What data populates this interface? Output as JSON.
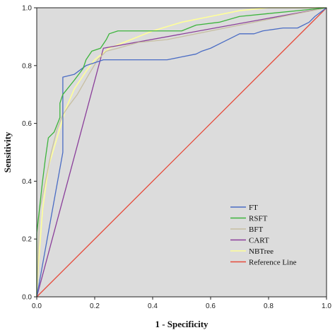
{
  "chart_data": {
    "type": "line",
    "title": "",
    "xlabel": "1 - Specificity",
    "ylabel": "Sensitivity",
    "xlim": [
      0,
      1
    ],
    "ylim": [
      0,
      1
    ],
    "xticks": [
      "0.0",
      "0.2",
      "0.4",
      "0.6",
      "0.8",
      "1.0"
    ],
    "yticks": [
      "0.0",
      "0.2",
      "0.4",
      "0.6",
      "0.8",
      "1.0"
    ],
    "grid": false,
    "legend_position": "bottom-right",
    "background": "#dcdcdc",
    "series": [
      {
        "name": "FT",
        "color": "#4a6cc4",
        "points": [
          [
            0,
            0
          ],
          [
            0.09,
            0.5
          ],
          [
            0.09,
            0.76
          ],
          [
            0.13,
            0.77
          ],
          [
            0.17,
            0.8
          ],
          [
            0.23,
            0.82
          ],
          [
            0.45,
            0.82
          ],
          [
            0.5,
            0.83
          ],
          [
            0.55,
            0.84
          ],
          [
            0.57,
            0.85
          ],
          [
            0.6,
            0.86
          ],
          [
            0.64,
            0.88
          ],
          [
            0.68,
            0.9
          ],
          [
            0.7,
            0.91
          ],
          [
            0.75,
            0.91
          ],
          [
            0.78,
            0.92
          ],
          [
            0.85,
            0.93
          ],
          [
            0.9,
            0.93
          ],
          [
            0.94,
            0.95
          ],
          [
            0.96,
            0.97
          ],
          [
            1,
            1
          ]
        ]
      },
      {
        "name": "RSFT",
        "color": "#3cb43c",
        "points": [
          [
            0,
            0
          ],
          [
            0,
            0.22
          ],
          [
            0.01,
            0.31
          ],
          [
            0.02,
            0.4
          ],
          [
            0.03,
            0.48
          ],
          [
            0.04,
            0.55
          ],
          [
            0.06,
            0.57
          ],
          [
            0.08,
            0.62
          ],
          [
            0.08,
            0.67
          ],
          [
            0.09,
            0.7
          ],
          [
            0.13,
            0.75
          ],
          [
            0.16,
            0.79
          ],
          [
            0.17,
            0.82
          ],
          [
            0.19,
            0.85
          ],
          [
            0.22,
            0.86
          ],
          [
            0.24,
            0.89
          ],
          [
            0.25,
            0.91
          ],
          [
            0.28,
            0.92
          ],
          [
            0.5,
            0.92
          ],
          [
            0.55,
            0.94
          ],
          [
            0.63,
            0.95
          ],
          [
            0.7,
            0.97
          ],
          [
            0.8,
            0.98
          ],
          [
            0.9,
            0.99
          ],
          [
            1,
            1
          ]
        ]
      },
      {
        "name": "BFT",
        "color": "#c7bfa2",
        "points": [
          [
            0,
            0
          ],
          [
            0.01,
            0.3
          ],
          [
            0.03,
            0.4
          ],
          [
            0.05,
            0.5
          ],
          [
            0.07,
            0.58
          ],
          [
            0.09,
            0.63
          ],
          [
            0.11,
            0.66
          ],
          [
            0.14,
            0.7
          ],
          [
            0.18,
            0.77
          ],
          [
            0.21,
            0.82
          ],
          [
            0.24,
            0.85
          ],
          [
            0.28,
            0.86
          ],
          [
            0.35,
            0.88
          ],
          [
            0.45,
            0.89
          ],
          [
            0.55,
            0.91
          ],
          [
            0.65,
            0.93
          ],
          [
            0.75,
            0.95
          ],
          [
            0.85,
            0.97
          ],
          [
            1,
            1
          ]
        ]
      },
      {
        "name": "CART",
        "color": "#8a3e9a",
        "points": [
          [
            0,
            0
          ],
          [
            0.23,
            0.86
          ],
          [
            1,
            1
          ]
        ]
      },
      {
        "name": "NBTree",
        "color": "#ffff99",
        "points": [
          [
            0,
            0
          ],
          [
            0.005,
            0.1
          ],
          [
            0.02,
            0.3
          ],
          [
            0.04,
            0.45
          ],
          [
            0.07,
            0.55
          ],
          [
            0.1,
            0.65
          ],
          [
            0.13,
            0.72
          ],
          [
            0.17,
            0.78
          ],
          [
            0.2,
            0.82
          ],
          [
            0.25,
            0.86
          ],
          [
            0.3,
            0.88
          ],
          [
            0.4,
            0.92
          ],
          [
            0.5,
            0.95
          ],
          [
            0.6,
            0.97
          ],
          [
            0.7,
            0.99
          ],
          [
            0.8,
            1
          ],
          [
            1,
            1
          ]
        ]
      },
      {
        "name": "Reference Line",
        "color": "#e64a3a",
        "points": [
          [
            0,
            0
          ],
          [
            1,
            1
          ]
        ]
      }
    ]
  }
}
